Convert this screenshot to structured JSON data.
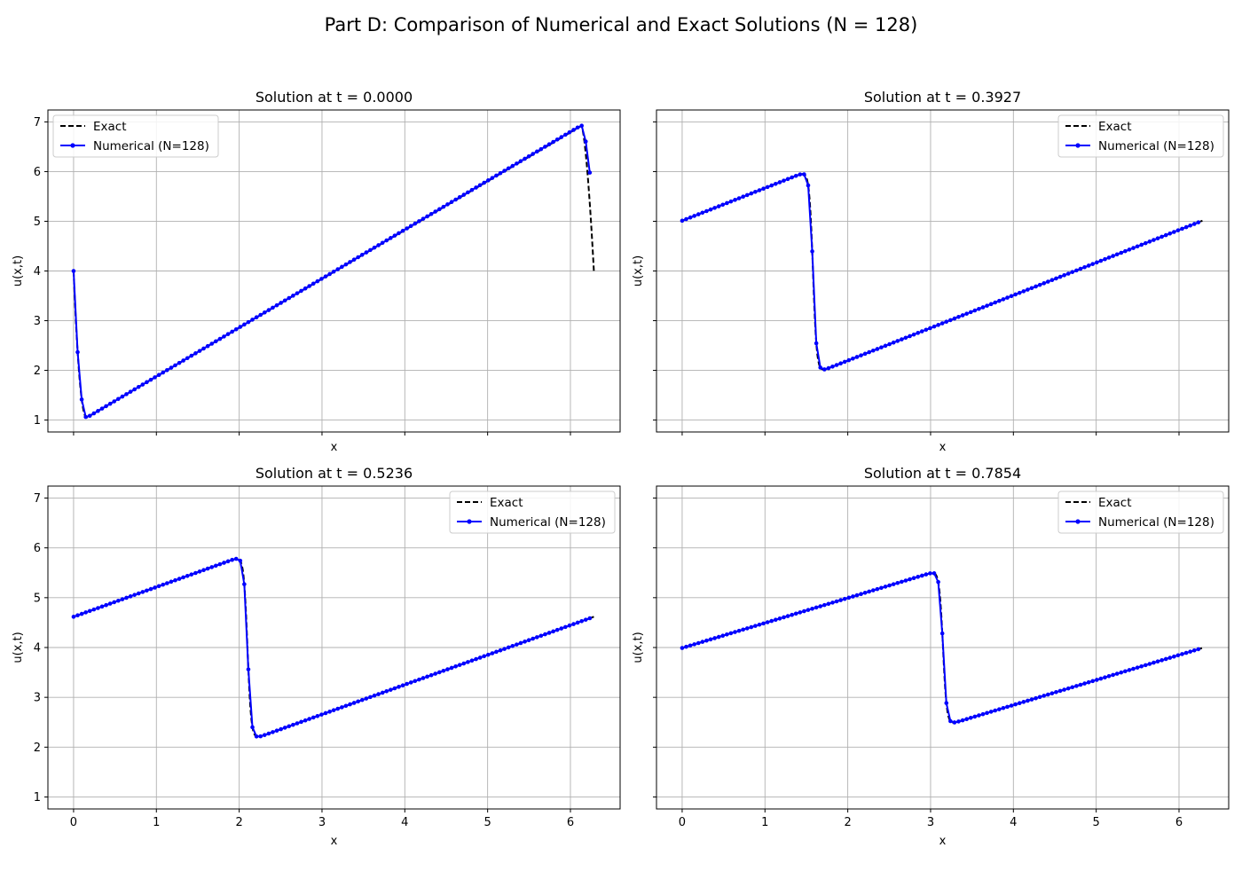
{
  "figure": {
    "suptitle": "Part D: Comparison of Numerical and Exact Solutions (N = 128)"
  },
  "colors": {
    "exact": "#000000",
    "numerical": "#0000ff",
    "grid": "#b0b0b0",
    "axes": "#000000"
  },
  "chart_data": [
    {
      "type": "line",
      "title": "Solution at t = 0.0000",
      "xlabel": "x",
      "ylabel": "u(x,t)",
      "t": 0.0,
      "xlim": [
        -0.31,
        6.6
      ],
      "ylim": [
        0.76,
        7.24
      ],
      "xticks": [
        0,
        1,
        2,
        3,
        4,
        5,
        6
      ],
      "yticks": [
        1,
        2,
        3,
        4,
        5,
        6,
        7
      ],
      "show_xtick_labels": false,
      "show_ytick_labels": true,
      "grid": true,
      "legend": "upper left",
      "series": [
        {
          "name": "Exact",
          "style": "dashed",
          "color": "#000000"
        },
        {
          "name": "Numerical (N=128)",
          "style": "solid-dots",
          "color": "#0000ff"
        }
      ]
    },
    {
      "type": "line",
      "title": "Solution at t = 0.3927",
      "xlabel": "x",
      "ylabel": "u(x,t)",
      "t": 0.3927,
      "xlim": [
        -0.31,
        6.6
      ],
      "ylim": [
        0.76,
        7.24
      ],
      "xticks": [
        0,
        1,
        2,
        3,
        4,
        5,
        6
      ],
      "yticks": [
        1,
        2,
        3,
        4,
        5,
        6,
        7
      ],
      "show_xtick_labels": false,
      "show_ytick_labels": false,
      "grid": true,
      "legend": "upper right",
      "series": [
        {
          "name": "Exact",
          "style": "dashed",
          "color": "#000000"
        },
        {
          "name": "Numerical (N=128)",
          "style": "solid-dots",
          "color": "#0000ff"
        }
      ]
    },
    {
      "type": "line",
      "title": "Solution at t = 0.5236",
      "xlabel": "x",
      "ylabel": "u(x,t)",
      "t": 0.5236,
      "xlim": [
        -0.31,
        6.6
      ],
      "ylim": [
        0.76,
        7.24
      ],
      "xticks": [
        0,
        1,
        2,
        3,
        4,
        5,
        6
      ],
      "yticks": [
        1,
        2,
        3,
        4,
        5,
        6,
        7
      ],
      "show_xtick_labels": true,
      "show_ytick_labels": true,
      "grid": true,
      "legend": "upper right",
      "series": [
        {
          "name": "Exact",
          "style": "dashed",
          "color": "#000000"
        },
        {
          "name": "Numerical (N=128)",
          "style": "solid-dots",
          "color": "#0000ff"
        }
      ]
    },
    {
      "type": "line",
      "title": "Solution at t = 0.7854",
      "xlabel": "x",
      "ylabel": "u(x,t)",
      "t": 0.7854,
      "xlim": [
        -0.31,
        6.6
      ],
      "ylim": [
        0.76,
        7.24
      ],
      "xticks": [
        0,
        1,
        2,
        3,
        4,
        5,
        6
      ],
      "yticks": [
        1,
        2,
        3,
        4,
        5,
        6,
        7
      ],
      "show_xtick_labels": true,
      "show_ytick_labels": false,
      "grid": true,
      "legend": "upper right",
      "series": [
        {
          "name": "Exact",
          "style": "dashed",
          "color": "#000000"
        },
        {
          "name": "Numerical (N=128)",
          "style": "solid-dots",
          "color": "#0000ff"
        }
      ]
    }
  ]
}
